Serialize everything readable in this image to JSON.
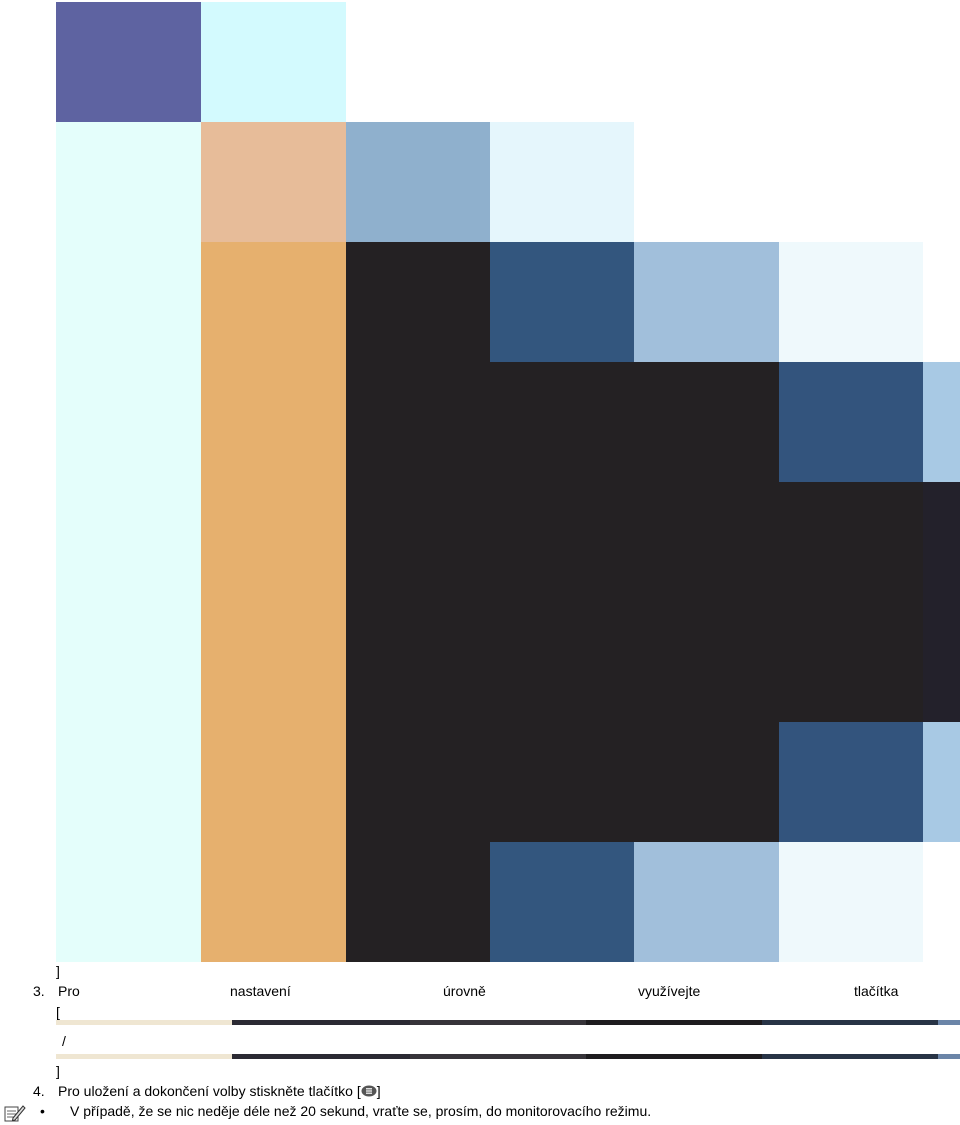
{
  "mosaic": {
    "colors": [
      [
        "#5e63a1",
        "#d3fafe",
        "#ffffff",
        "#ffffff",
        "#ffffff",
        "#ffffff",
        "#ffffff"
      ],
      [
        "#e4fefb",
        "#e7bc99",
        "#8fb0cd",
        "#e5f6fc",
        "#ffffff",
        "#ffffff",
        "#ffffff"
      ],
      [
        "#e4fefb",
        "#e6b06e",
        "#242123",
        "#33567e",
        "#a1bfdb",
        "#eff9fc",
        "#ffffff"
      ],
      [
        "#e4fefb",
        "#e6b06e",
        "#242123",
        "#242123",
        "#242123",
        "#33547d",
        "#a8c9e4"
      ],
      [
        "#e4fefb",
        "#e6b06e",
        "#242123",
        "#242123",
        "#242123",
        "#242123",
        "#23212b"
      ],
      [
        "#e4fefb",
        "#e6b06e",
        "#242123",
        "#242123",
        "#242123",
        "#242123",
        "#23212b"
      ],
      [
        "#e4fefb",
        "#e6b06e",
        "#242123",
        "#242123",
        "#242123",
        "#33547d",
        "#a8c9e4"
      ],
      [
        "#e4fefb",
        "#e6b06e",
        "#242123",
        "#33567e",
        "#a1bfdb",
        "#eff9fc",
        "#ffffff"
      ]
    ]
  },
  "stripes": {
    "colors": [
      "#efe6d2",
      "#2b2a33",
      "#37343a",
      "#1e1c1f",
      "#283446",
      "#6b85a8"
    ]
  },
  "text": {
    "bracket_close_1": "]",
    "step3_number": "3.",
    "step3_words": [
      "Pro",
      "nastavení",
      "úrovně",
      "využívejte",
      "tlačítka"
    ],
    "bracket_open": "[",
    "slash": "/",
    "bracket_close_2": "]",
    "step4_number": "4.",
    "step4_text": "Pro uložení a dokončení volby stiskněte tlačítko [",
    "step4_end": "]",
    "bullet": "•",
    "note_text": "V případě, že se nic neděje déle než 20 sekund, vraťte se, prosím, do monitorovacího režimu."
  },
  "icons": {
    "note": "note-pencil-icon",
    "button": "menu-button-icon"
  }
}
